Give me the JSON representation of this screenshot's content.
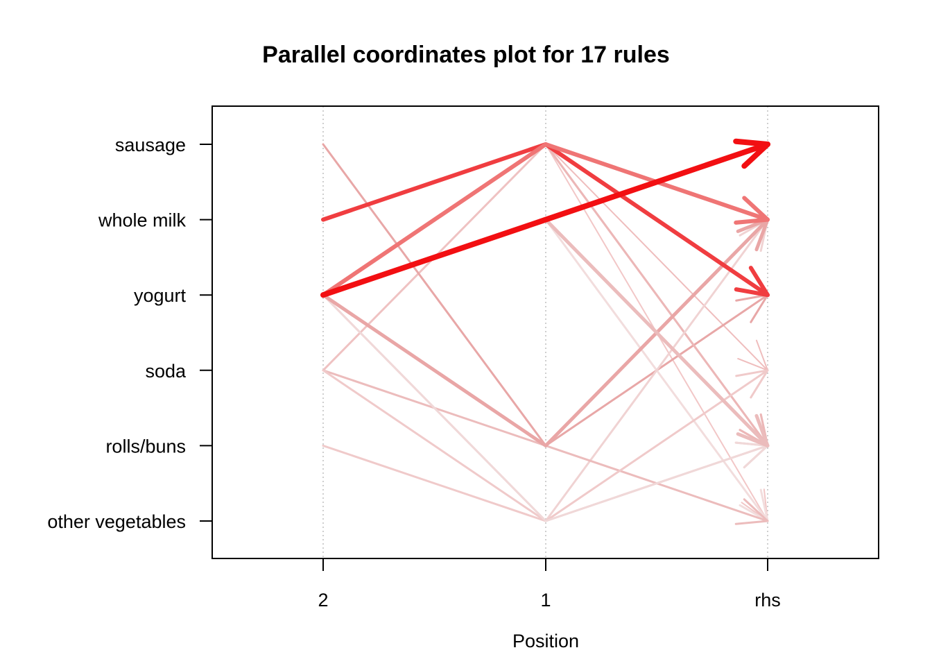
{
  "chart_data": {
    "type": "parallel-coordinates",
    "title": "Parallel coordinates plot for 17 rules",
    "xlabel": "Position",
    "ylabel": "",
    "positions": [
      "2",
      "1",
      "rhs"
    ],
    "items": [
      "sausage",
      "whole milk",
      "yogurt",
      "soda",
      "rolls/buns",
      "other vegetables"
    ],
    "grid": "vertical-dotted",
    "rules": [
      {
        "lhs2": "whole milk",
        "lhs1": "sausage",
        "rhs": "yogurt",
        "color": "#f03d40",
        "width": 6
      },
      {
        "lhs2": "yogurt",
        "lhs1": "whole milk",
        "rhs": "sausage",
        "color": "#f20f12",
        "width": 8
      },
      {
        "lhs2": "yogurt",
        "lhs1": "sausage",
        "rhs": "whole milk",
        "color": "#ef7575",
        "width": 6
      },
      {
        "lhs2": "soda",
        "lhs1": "sausage",
        "rhs": "rolls/buns",
        "color": "#efc2c2",
        "width": 3
      },
      {
        "lhs2": "yogurt",
        "lhs1": "rolls/buns",
        "rhs": "whole milk",
        "color": "#e9a6a6",
        "width": 5
      },
      {
        "lhs2": "sausage",
        "lhs1": "rolls/buns",
        "rhs": "yogurt",
        "color": "#e8a7a7",
        "width": 3
      },
      {
        "lhs2": null,
        "lhs1": "whole milk",
        "rhs": "rolls/buns",
        "color": "#ebbcbc",
        "width": 5
      },
      {
        "lhs2": null,
        "lhs1": "sausage",
        "rhs": "soda",
        "color": "#efbdbd",
        "width": 2
      },
      {
        "lhs2": null,
        "lhs1": "sausage",
        "rhs": "rolls/buns",
        "color": "#ecb7b7",
        "width": 3
      },
      {
        "lhs2": null,
        "lhs1": "sausage",
        "rhs": "other vegetables",
        "color": "#f2c7c7",
        "width": 2
      },
      {
        "lhs2": null,
        "lhs1": "whole milk",
        "rhs": "other vegetables",
        "color": "#f2dddd",
        "width": 3
      },
      {
        "lhs2": "yogurt",
        "lhs1": "other vegetables",
        "rhs": "whole milk",
        "color": "#f0d3d3",
        "width": 3
      },
      {
        "lhs2": "soda",
        "lhs1": "rolls/buns",
        "rhs": "other vegetables",
        "color": "#ecbcbc",
        "width": 3
      },
      {
        "lhs2": "rolls/buns",
        "lhs1": "other vegetables",
        "rhs": "soda",
        "color": "#f0caca",
        "width": 3
      },
      {
        "lhs2": "soda",
        "lhs1": "other vegetables",
        "rhs": "rolls/buns",
        "color": "#f0caca",
        "width": 3
      },
      {
        "lhs2": "yogurt",
        "lhs1": "other vegetables",
        "rhs": "rolls/buns",
        "color": "#f0d8d8",
        "width": 3
      },
      {
        "lhs2": "yogurt",
        "lhs1": "sausage",
        "rhs": "rolls/buns",
        "color": "#f0cdcd",
        "width": 2
      }
    ]
  }
}
